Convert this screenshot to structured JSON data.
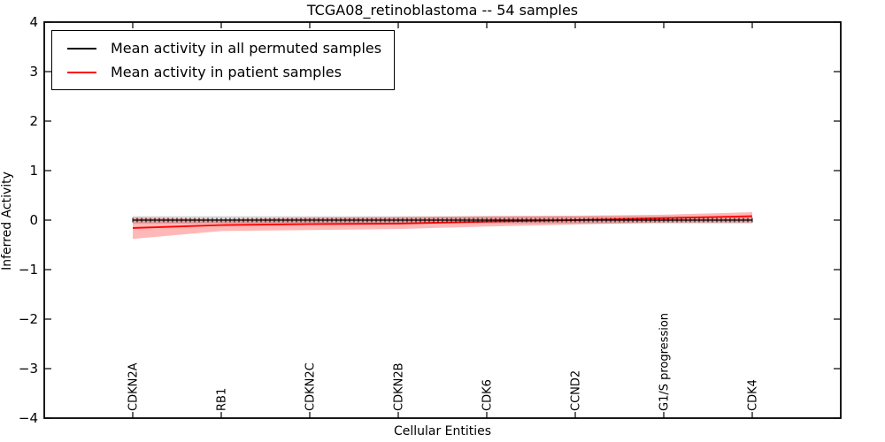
{
  "chart_data": {
    "type": "line",
    "title": "TCGA08_retinoblastoma -- 54 samples",
    "xlabel": "Cellular Entities",
    "ylabel": "Inferred Activity",
    "ylim": [
      -4,
      4
    ],
    "yticks": [
      4,
      3,
      2,
      1,
      0,
      -1,
      -2,
      -3,
      -4
    ],
    "grid": false,
    "legend_position": "upper left",
    "categories": [
      "CDKN2A",
      "RB1",
      "CDKN2C",
      "CDKN2B",
      "CDK6",
      "CCND2",
      "G1/S progression",
      "CDK4"
    ],
    "series": [
      {
        "name": "Mean activity in all permuted samples",
        "color": "#000000",
        "values": [
          0,
          0,
          0,
          0,
          0,
          0,
          0,
          0
        ],
        "band_upper": [
          0.08,
          0.08,
          0.08,
          0.08,
          0.08,
          0.08,
          0.08,
          0.08
        ],
        "band_lower": [
          -0.07,
          -0.07,
          -0.07,
          -0.07,
          -0.07,
          -0.07,
          -0.07,
          -0.07
        ],
        "band_color": "rgba(130,130,130,0.30)",
        "marker": "vertical-tick"
      },
      {
        "name": "Mean activity in patient samples",
        "color": "#ff0000",
        "values": [
          -0.16,
          -0.1,
          -0.08,
          -0.07,
          -0.03,
          0.0,
          0.04,
          0.08
        ],
        "band_upper": [
          0.05,
          0.02,
          0.05,
          0.06,
          0.08,
          0.09,
          0.11,
          0.16
        ],
        "band_lower": [
          -0.38,
          -0.22,
          -0.2,
          -0.18,
          -0.13,
          -0.09,
          -0.05,
          -0.05
        ],
        "band_color": "rgba(255,0,0,0.28)",
        "marker": "none"
      }
    ],
    "colors": {
      "frame": "#000000",
      "background": "#ffffff",
      "patient_accent": "#ff0000"
    }
  }
}
